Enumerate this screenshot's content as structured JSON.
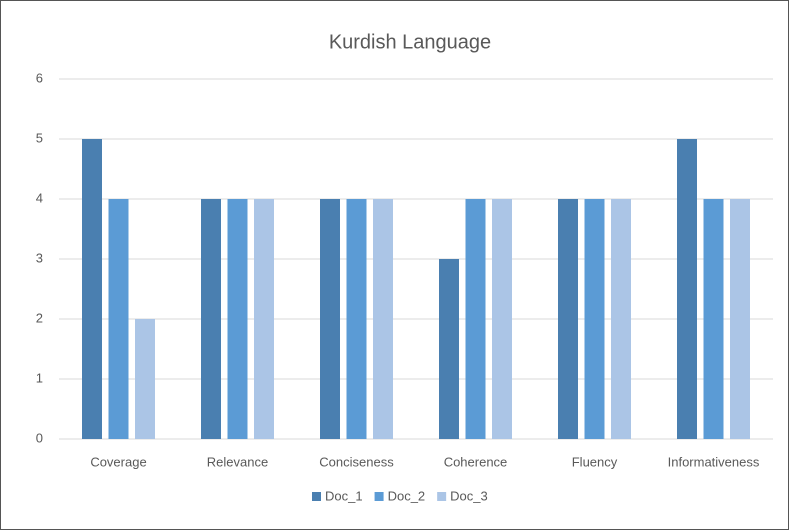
{
  "chart_data": {
    "type": "bar",
    "title": "Kurdish Language",
    "categories": [
      "Coverage",
      "Relevance",
      "Conciseness",
      "Coherence",
      "Fluency",
      "Informativeness"
    ],
    "series": [
      {
        "name": "Doc_1",
        "color": "#4a7fb0",
        "values": [
          5,
          4,
          4,
          3,
          4,
          5
        ]
      },
      {
        "name": "Doc_2",
        "color": "#5b9bd5",
        "values": [
          4,
          4,
          4,
          4,
          4,
          4
        ]
      },
      {
        "name": "Doc_3",
        "color": "#abc5e6",
        "values": [
          2,
          4,
          4,
          4,
          4,
          4
        ]
      }
    ],
    "ylim": [
      0,
      6
    ],
    "yticks": [
      0,
      1,
      2,
      3,
      4,
      5,
      6
    ],
    "grid": true,
    "legend": "bottom"
  }
}
